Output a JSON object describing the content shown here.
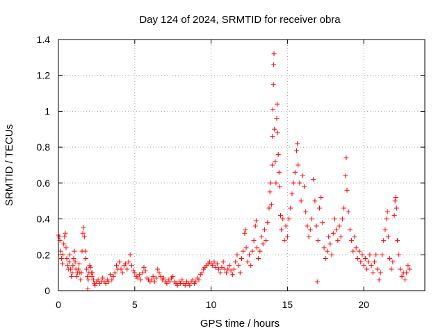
{
  "chart_data": {
    "type": "scatter",
    "title": "Day 124 of 2024, SRMTID for receiver obra",
    "xlabel": "GPS time / hours",
    "ylabel": "SRMTID / TECUs",
    "xlim": [
      0,
      24
    ],
    "ylim": [
      0,
      1.4
    ],
    "xticks": [
      0,
      5,
      10,
      15,
      20
    ],
    "xtick_labels": [
      "0",
      "5",
      "10",
      "15",
      "20"
    ],
    "yticks": [
      0,
      0.2,
      0.4,
      0.6,
      0.8,
      1.0,
      1.2,
      1.4
    ],
    "ytick_labels": [
      "0",
      "0.2",
      "0.4",
      "0.6",
      "0.8",
      "1",
      "1.2",
      "1.4"
    ],
    "grid": true,
    "marker": "+",
    "marker_color": "#ff0000",
    "series": [
      {
        "name": "SRMTID",
        "points": [
          [
            0.0,
            0.31
          ],
          [
            0.05,
            0.3
          ],
          [
            0.1,
            0.28
          ],
          [
            0.15,
            0.22
          ],
          [
            0.2,
            0.18
          ],
          [
            0.25,
            0.15
          ],
          [
            0.3,
            0.2
          ],
          [
            0.35,
            0.26
          ],
          [
            0.4,
            0.3
          ],
          [
            0.45,
            0.32
          ],
          [
            0.5,
            0.24
          ],
          [
            0.55,
            0.18
          ],
          [
            0.6,
            0.14
          ],
          [
            0.65,
            0.12
          ],
          [
            0.7,
            0.16
          ],
          [
            0.75,
            0.2
          ],
          [
            0.8,
            0.12
          ],
          [
            0.85,
            0.08
          ],
          [
            0.9,
            0.1
          ],
          [
            0.95,
            0.14
          ],
          [
            1.0,
            0.18
          ],
          [
            1.05,
            0.22
          ],
          [
            1.1,
            0.16
          ],
          [
            1.15,
            0.12
          ],
          [
            1.2,
            0.08
          ],
          [
            1.25,
            0.1
          ],
          [
            1.3,
            0.12
          ],
          [
            1.35,
            0.15
          ],
          [
            1.4,
            0.1
          ],
          [
            1.45,
            0.06
          ],
          [
            1.5,
            0.1
          ],
          [
            1.55,
            0.22
          ],
          [
            1.6,
            0.32
          ],
          [
            1.65,
            0.35
          ],
          [
            1.7,
            0.3
          ],
          [
            1.75,
            0.22
          ],
          [
            1.8,
            0.18
          ],
          [
            1.85,
            0.12
          ],
          [
            1.9,
            0.08
          ],
          [
            1.92,
            0.01
          ],
          [
            1.95,
            0.06
          ],
          [
            2.0,
            0.1
          ],
          [
            2.05,
            0.14
          ],
          [
            2.1,
            0.13
          ],
          [
            2.15,
            0.1
          ],
          [
            2.2,
            0.08
          ],
          [
            2.25,
            0.1
          ],
          [
            2.3,
            0.06
          ],
          [
            2.35,
            0.04
          ],
          [
            2.4,
            0.03
          ],
          [
            2.5,
            0.05
          ],
          [
            2.6,
            0.06
          ],
          [
            2.7,
            0.04
          ],
          [
            2.8,
            0.05
          ],
          [
            2.9,
            0.07
          ],
          [
            3.0,
            0.05
          ],
          [
            3.1,
            0.04
          ],
          [
            3.2,
            0.06
          ],
          [
            3.3,
            0.05
          ],
          [
            3.4,
            0.09
          ],
          [
            3.5,
            0.06
          ],
          [
            3.6,
            0.08
          ],
          [
            3.7,
            0.1
          ],
          [
            3.8,
            0.14
          ],
          [
            3.9,
            0.12
          ],
          [
            4.0,
            0.16
          ],
          [
            4.1,
            0.12
          ],
          [
            4.2,
            0.1
          ],
          [
            4.3,
            0.14
          ],
          [
            4.4,
            0.15
          ],
          [
            4.5,
            0.12
          ],
          [
            4.6,
            0.16
          ],
          [
            4.7,
            0.2
          ],
          [
            4.8,
            0.14
          ],
          [
            4.9,
            0.11
          ],
          [
            5.0,
            0.1
          ],
          [
            5.1,
            0.08
          ],
          [
            5.2,
            0.07
          ],
          [
            5.3,
            0.09
          ],
          [
            5.4,
            0.06
          ],
          [
            5.5,
            0.1
          ],
          [
            5.6,
            0.13
          ],
          [
            5.7,
            0.11
          ],
          [
            5.8,
            0.07
          ],
          [
            5.9,
            0.06
          ],
          [
            6.0,
            0.05
          ],
          [
            6.1,
            0.06
          ],
          [
            6.2,
            0.08
          ],
          [
            6.3,
            0.05
          ],
          [
            6.4,
            0.07
          ],
          [
            6.5,
            0.12
          ],
          [
            6.6,
            0.1
          ],
          [
            6.7,
            0.08
          ],
          [
            6.8,
            0.06
          ],
          [
            6.9,
            0.07
          ],
          [
            7.0,
            0.05
          ],
          [
            7.1,
            0.04
          ],
          [
            7.2,
            0.06
          ],
          [
            7.3,
            0.05
          ],
          [
            7.4,
            0.07
          ],
          [
            7.5,
            0.08
          ],
          [
            7.6,
            0.05
          ],
          [
            7.7,
            0.04
          ],
          [
            7.8,
            0.03
          ],
          [
            7.9,
            0.05
          ],
          [
            8.0,
            0.04
          ],
          [
            8.1,
            0.06
          ],
          [
            8.2,
            0.04
          ],
          [
            8.3,
            0.03
          ],
          [
            8.4,
            0.05
          ],
          [
            8.5,
            0.04
          ],
          [
            8.6,
            0.03
          ],
          [
            8.7,
            0.05
          ],
          [
            8.8,
            0.06
          ],
          [
            8.9,
            0.04
          ],
          [
            9.0,
            0.05
          ],
          [
            9.1,
            0.07
          ],
          [
            9.2,
            0.06
          ],
          [
            9.3,
            0.09
          ],
          [
            9.4,
            0.1
          ],
          [
            9.5,
            0.12
          ],
          [
            9.6,
            0.13
          ],
          [
            9.7,
            0.14
          ],
          [
            9.8,
            0.15
          ],
          [
            9.9,
            0.16
          ],
          [
            10.0,
            0.15
          ],
          [
            10.1,
            0.14
          ],
          [
            10.2,
            0.16
          ],
          [
            10.3,
            0.13
          ],
          [
            10.4,
            0.15
          ],
          [
            10.5,
            0.12
          ],
          [
            10.6,
            0.1
          ],
          [
            10.7,
            0.13
          ],
          [
            10.8,
            0.16
          ],
          [
            10.9,
            0.12
          ],
          [
            11.0,
            0.1
          ],
          [
            11.1,
            0.12
          ],
          [
            11.2,
            0.14
          ],
          [
            11.3,
            0.11
          ],
          [
            11.4,
            0.09
          ],
          [
            11.5,
            0.12
          ],
          [
            11.6,
            0.16
          ],
          [
            11.7,
            0.2
          ],
          [
            11.8,
            0.14
          ],
          [
            11.9,
            0.1
          ],
          [
            12.0,
            0.18
          ],
          [
            12.1,
            0.22
          ],
          [
            12.2,
            0.32
          ],
          [
            12.25,
            0.34
          ],
          [
            12.3,
            0.24
          ],
          [
            12.4,
            0.16
          ],
          [
            12.5,
            0.2
          ],
          [
            12.6,
            0.14
          ],
          [
            12.7,
            0.22
          ],
          [
            12.8,
            0.28
          ],
          [
            12.9,
            0.36
          ],
          [
            12.95,
            0.39
          ],
          [
            13.0,
            0.24
          ],
          [
            13.1,
            0.18
          ],
          [
            13.2,
            0.22
          ],
          [
            13.3,
            0.3
          ],
          [
            13.4,
            0.26
          ],
          [
            13.5,
            0.34
          ],
          [
            13.6,
            0.28
          ],
          [
            13.7,
            0.38
          ],
          [
            13.8,
            0.46
          ],
          [
            13.85,
            0.55
          ],
          [
            13.9,
            0.6
          ],
          [
            13.95,
            0.48
          ],
          [
            14.0,
            0.7
          ],
          [
            14.02,
            0.86
          ],
          [
            14.05,
            1.01
          ],
          [
            14.08,
            1.15
          ],
          [
            14.1,
            1.26
          ],
          [
            14.12,
            1.32
          ],
          [
            14.15,
            0.9
          ],
          [
            14.2,
            0.72
          ],
          [
            14.25,
            0.6
          ],
          [
            14.3,
            0.96
          ],
          [
            14.33,
            1.04
          ],
          [
            14.36,
            0.88
          ],
          [
            14.4,
            0.76
          ],
          [
            14.45,
            0.66
          ],
          [
            14.5,
            0.58
          ],
          [
            14.55,
            0.42
          ],
          [
            14.6,
            0.34
          ],
          [
            14.7,
            0.4
          ],
          [
            14.8,
            0.28
          ],
          [
            14.9,
            0.36
          ],
          [
            15.0,
            0.3
          ],
          [
            15.1,
            0.4
          ],
          [
            15.2,
            0.46
          ],
          [
            15.3,
            0.54
          ],
          [
            15.4,
            0.6
          ],
          [
            15.5,
            0.66
          ],
          [
            15.6,
            0.78
          ],
          [
            15.65,
            0.82
          ],
          [
            15.7,
            0.7
          ],
          [
            15.8,
            0.6
          ],
          [
            15.9,
            0.5
          ],
          [
            16.0,
            0.64
          ],
          [
            16.1,
            0.58
          ],
          [
            16.2,
            0.44
          ],
          [
            16.3,
            0.36
          ],
          [
            16.4,
            0.3
          ],
          [
            16.5,
            0.34
          ],
          [
            16.6,
            0.4
          ],
          [
            16.7,
            0.62
          ],
          [
            16.8,
            0.5
          ],
          [
            16.9,
            0.36
          ],
          [
            16.95,
            0.05
          ],
          [
            17.0,
            0.28
          ],
          [
            17.1,
            0.46
          ],
          [
            17.2,
            0.52
          ],
          [
            17.3,
            0.38
          ],
          [
            17.4,
            0.24
          ],
          [
            17.5,
            0.18
          ],
          [
            17.6,
            0.22
          ],
          [
            17.7,
            0.3
          ],
          [
            17.8,
            0.26
          ],
          [
            17.9,
            0.2
          ],
          [
            18.0,
            0.32
          ],
          [
            18.1,
            0.4
          ],
          [
            18.2,
            0.34
          ],
          [
            18.3,
            0.28
          ],
          [
            18.4,
            0.36
          ],
          [
            18.5,
            0.3
          ],
          [
            18.6,
            0.4
          ],
          [
            18.7,
            0.46
          ],
          [
            18.8,
            0.64
          ],
          [
            18.85,
            0.74
          ],
          [
            18.9,
            0.56
          ],
          [
            19.0,
            0.44
          ],
          [
            19.1,
            0.34
          ],
          [
            19.2,
            0.28
          ],
          [
            19.3,
            0.22
          ],
          [
            19.4,
            0.3
          ],
          [
            19.5,
            0.24
          ],
          [
            19.6,
            0.18
          ],
          [
            19.7,
            0.22
          ],
          [
            19.8,
            0.16
          ],
          [
            19.9,
            0.2
          ],
          [
            20.0,
            0.14
          ],
          [
            20.1,
            0.18
          ],
          [
            20.2,
            0.12
          ],
          [
            20.3,
            0.16
          ],
          [
            20.4,
            0.2
          ],
          [
            20.5,
            0.14
          ],
          [
            20.6,
            0.1
          ],
          [
            20.7,
            0.16
          ],
          [
            20.8,
            0.2
          ],
          [
            20.9,
            0.12
          ],
          [
            21.0,
            0.06
          ],
          [
            21.1,
            0.1
          ],
          [
            21.2,
            0.2
          ],
          [
            21.3,
            0.28
          ],
          [
            21.4,
            0.34
          ],
          [
            21.5,
            0.4
          ],
          [
            21.55,
            0.44
          ],
          [
            21.6,
            0.3
          ],
          [
            21.7,
            0.18
          ],
          [
            21.8,
            0.12
          ],
          [
            21.9,
            0.16
          ],
          [
            22.0,
            0.42
          ],
          [
            22.05,
            0.5
          ],
          [
            22.1,
            0.52
          ],
          [
            22.15,
            0.46
          ],
          [
            22.2,
            0.28
          ],
          [
            22.3,
            0.2
          ],
          [
            22.4,
            0.12
          ],
          [
            22.5,
            0.08
          ],
          [
            22.6,
            0.1
          ],
          [
            22.7,
            0.06
          ],
          [
            22.8,
            0.1
          ],
          [
            22.9,
            0.14
          ],
          [
            23.0,
            0.12
          ]
        ]
      }
    ]
  }
}
